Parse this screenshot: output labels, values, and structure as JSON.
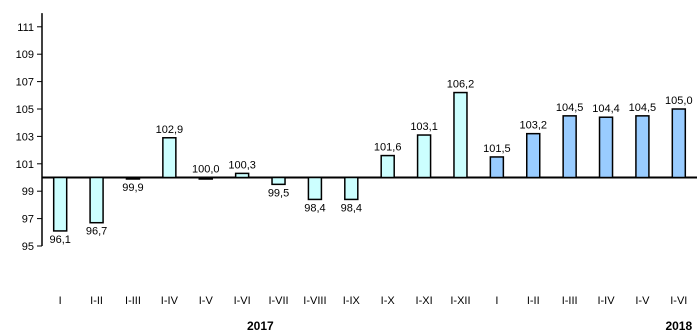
{
  "chart_data": {
    "type": "bar",
    "categories": [
      "I",
      "I-II",
      "I-III",
      "I-IV",
      "I-V",
      "I-VI",
      "I-VII",
      "I-VIII",
      "I-IX",
      "I-X",
      "I-XI",
      "I-XII",
      "I",
      "I-II",
      "I-III",
      "I-IV",
      "I-V",
      "I-VI"
    ],
    "values": [
      96.1,
      96.7,
      99.9,
      102.9,
      100.0,
      100.3,
      99.5,
      98.4,
      98.4,
      101.6,
      103.1,
      106.2,
      101.5,
      103.2,
      104.5,
      104.4,
      104.5,
      105.0
    ],
    "value_labels": [
      "96,1",
      "96,7",
      "99,9",
      "102,9",
      "100,0",
      "100,3",
      "99,5",
      "98,4",
      "98,4",
      "101,6",
      "103,1",
      "106,2",
      "101,5",
      "103,2",
      "104,5",
      "104,4",
      "104,5",
      "105,0"
    ],
    "groups": [
      {
        "label": "2017",
        "start": 0,
        "end": 11,
        "color": "#ccffff"
      },
      {
        "label": "2018",
        "start": 12,
        "end": 17,
        "color": "#99ccff"
      }
    ],
    "baseline": 100,
    "ylim": [
      95,
      112
    ],
    "yticks": [
      95,
      97,
      99,
      101,
      103,
      105,
      107,
      109,
      111
    ],
    "ytick_labels": [
      "95",
      "97",
      "99",
      "101",
      "103",
      "105",
      "107",
      "109",
      "111"
    ],
    "title": "",
    "xlabel": "",
    "ylabel": "",
    "grid": false,
    "legend": "none"
  }
}
